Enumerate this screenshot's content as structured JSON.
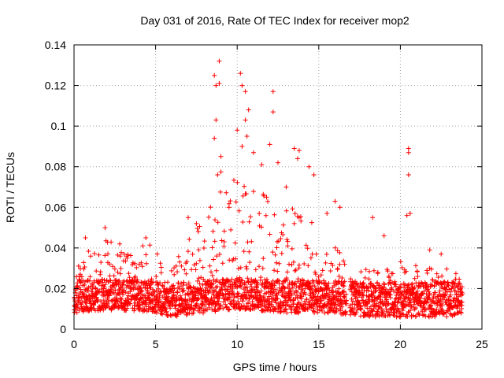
{
  "chart_data": {
    "type": "scatter",
    "title": "Day 031 of 2016, Rate Of TEC Index for receiver mop2",
    "xlabel": "GPS time / hours",
    "ylabel": "ROTI / TECUs",
    "xlim": [
      0,
      25
    ],
    "ylim": [
      0,
      0.14
    ],
    "xticks": [
      0,
      5,
      10,
      15,
      20,
      25
    ],
    "xtick_labels": [
      "0",
      "5",
      "10",
      "15",
      "20",
      "25"
    ],
    "yticks": [
      0,
      0.02,
      0.04,
      0.06,
      0.08,
      0.1,
      0.12,
      0.14
    ],
    "ytick_labels": [
      "0",
      "0.02",
      "0.04",
      "0.06",
      "0.08",
      "0.1",
      "0.12",
      "0.14"
    ],
    "grid": true,
    "marker": "+",
    "color": "#ff0000",
    "data_gap_hours": [
      16.7,
      16.9
    ],
    "series": [
      {
        "name": "ROTI",
        "envelope": [
          {
            "x": 0.0,
            "low": 0.008,
            "high": 0.03
          },
          {
            "x": 1.0,
            "low": 0.009,
            "high": 0.04
          },
          {
            "x": 2.0,
            "low": 0.009,
            "high": 0.045
          },
          {
            "x": 3.0,
            "low": 0.009,
            "high": 0.038
          },
          {
            "x": 4.0,
            "low": 0.009,
            "high": 0.04
          },
          {
            "x": 4.5,
            "low": 0.008,
            "high": 0.045
          },
          {
            "x": 5.0,
            "low": 0.008,
            "high": 0.036
          },
          {
            "x": 6.0,
            "low": 0.006,
            "high": 0.03
          },
          {
            "x": 7.0,
            "low": 0.007,
            "high": 0.045
          },
          {
            "x": 8.0,
            "low": 0.008,
            "high": 0.055
          },
          {
            "x": 9.0,
            "low": 0.009,
            "high": 0.08
          },
          {
            "x": 10.0,
            "low": 0.01,
            "high": 0.075
          },
          {
            "x": 11.0,
            "low": 0.009,
            "high": 0.07
          },
          {
            "x": 12.0,
            "low": 0.009,
            "high": 0.065
          },
          {
            "x": 13.0,
            "low": 0.008,
            "high": 0.06
          },
          {
            "x": 14.0,
            "low": 0.008,
            "high": 0.065
          },
          {
            "x": 15.0,
            "low": 0.008,
            "high": 0.05
          },
          {
            "x": 16.0,
            "low": 0.008,
            "high": 0.045
          },
          {
            "x": 16.7,
            "low": 0.007,
            "high": 0.035
          },
          {
            "x": 17.0,
            "low": 0.007,
            "high": 0.028
          },
          {
            "x": 18.0,
            "low": 0.006,
            "high": 0.03
          },
          {
            "x": 19.0,
            "low": 0.006,
            "high": 0.03
          },
          {
            "x": 20.0,
            "low": 0.006,
            "high": 0.035
          },
          {
            "x": 21.0,
            "low": 0.006,
            "high": 0.032
          },
          {
            "x": 22.0,
            "low": 0.006,
            "high": 0.03
          },
          {
            "x": 23.0,
            "low": 0.006,
            "high": 0.03
          },
          {
            "x": 23.8,
            "low": 0.008,
            "high": 0.025
          }
        ],
        "peaks": [
          {
            "x": 8.6,
            "y": 0.125
          },
          {
            "x": 8.7,
            "y": 0.12
          },
          {
            "x": 8.7,
            "y": 0.103
          },
          {
            "x": 8.6,
            "y": 0.094
          },
          {
            "x": 8.9,
            "y": 0.132
          },
          {
            "x": 8.9,
            "y": 0.121
          },
          {
            "x": 9.0,
            "y": 0.085
          },
          {
            "x": 8.8,
            "y": 0.076
          },
          {
            "x": 10.2,
            "y": 0.126
          },
          {
            "x": 10.3,
            "y": 0.12
          },
          {
            "x": 10.5,
            "y": 0.117
          },
          {
            "x": 10.5,
            "y": 0.103
          },
          {
            "x": 10.7,
            "y": 0.108
          },
          {
            "x": 10.0,
            "y": 0.098
          },
          {
            "x": 10.6,
            "y": 0.095
          },
          {
            "x": 10.3,
            "y": 0.09
          },
          {
            "x": 11.0,
            "y": 0.087
          },
          {
            "x": 11.5,
            "y": 0.081
          },
          {
            "x": 12.2,
            "y": 0.117
          },
          {
            "x": 12.2,
            "y": 0.107
          },
          {
            "x": 12.0,
            "y": 0.091
          },
          {
            "x": 12.5,
            "y": 0.082
          },
          {
            "x": 13.5,
            "y": 0.089
          },
          {
            "x": 13.7,
            "y": 0.084
          },
          {
            "x": 13.8,
            "y": 0.088
          },
          {
            "x": 14.4,
            "y": 0.08
          },
          {
            "x": 14.7,
            "y": 0.076
          },
          {
            "x": 15.5,
            "y": 0.057
          },
          {
            "x": 16.0,
            "y": 0.063
          },
          {
            "x": 16.3,
            "y": 0.06
          },
          {
            "x": 18.3,
            "y": 0.055
          },
          {
            "x": 19.0,
            "y": 0.046
          },
          {
            "x": 20.5,
            "y": 0.089
          },
          {
            "x": 20.5,
            "y": 0.087
          },
          {
            "x": 20.5,
            "y": 0.076
          },
          {
            "x": 20.6,
            "y": 0.057
          },
          {
            "x": 20.4,
            "y": 0.056
          },
          {
            "x": 22.5,
            "y": 0.037
          },
          {
            "x": 21.8,
            "y": 0.039
          },
          {
            "x": 0.7,
            "y": 0.045
          },
          {
            "x": 1.9,
            "y": 0.05
          },
          {
            "x": 2.8,
            "y": 0.042
          },
          {
            "x": 4.4,
            "y": 0.045
          },
          {
            "x": 5.1,
            "y": 0.037
          },
          {
            "x": 7.0,
            "y": 0.055
          },
          {
            "x": 7.5,
            "y": 0.052
          },
          {
            "x": 9.5,
            "y": 0.06
          },
          {
            "x": 11.8,
            "y": 0.065
          },
          {
            "x": 13.0,
            "y": 0.07
          }
        ]
      }
    ]
  }
}
